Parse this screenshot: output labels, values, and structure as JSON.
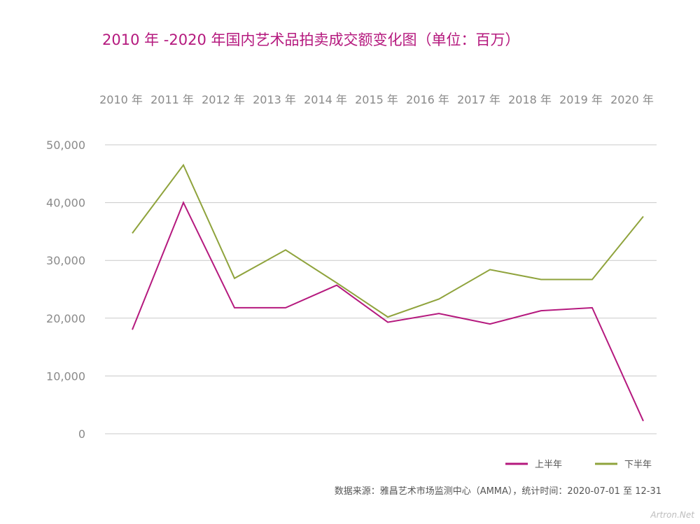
{
  "chart_data": {
    "type": "line",
    "title": "2010 年 -2020 年国内艺术品拍卖成交额变化图（单位：百万）",
    "categories": [
      "2010 年",
      "2011 年",
      "2012 年",
      "2013 年",
      "2014 年",
      "2015 年",
      "2016 年",
      "2017 年",
      "2018 年",
      "2019 年",
      "2020 年"
    ],
    "y_ticks": [
      "0",
      "10,000",
      "20,000",
      "30,000",
      "40,000",
      "50,000"
    ],
    "ylim": [
      0,
      50000
    ],
    "grid": true,
    "legend_position": "bottom-right",
    "series": [
      {
        "name": "上半年",
        "color": "#b5197e",
        "values": [
          18000,
          40000,
          21800,
          21800,
          25700,
          19300,
          20800,
          19000,
          21300,
          21800,
          2200
        ]
      },
      {
        "name": "下半年",
        "color": "#8fa33c",
        "values": [
          34700,
          46500,
          26900,
          31800,
          26100,
          20200,
          23300,
          28400,
          26700,
          26700,
          37600
        ]
      }
    ]
  },
  "source_note": "数据来源：雅昌艺术市场监测中心（AMMA），统计时间：2020-07-01 至 12-31",
  "watermark": "Artron.Net"
}
